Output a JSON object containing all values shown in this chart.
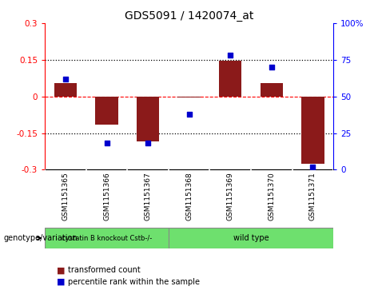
{
  "title": "GDS5091 / 1420074_at",
  "samples": [
    "GSM1151365",
    "GSM1151366",
    "GSM1151367",
    "GSM1151368",
    "GSM1151369",
    "GSM1151370",
    "GSM1151371"
  ],
  "transformed_count": [
    0.055,
    -0.115,
    -0.185,
    -0.005,
    0.145,
    0.055,
    -0.275
  ],
  "percentile_rank": [
    62,
    18,
    18,
    38,
    78,
    70,
    2
  ],
  "ylim_left": [
    -0.3,
    0.3
  ],
  "ylim_right": [
    0,
    100
  ],
  "yticks_left": [
    -0.3,
    -0.15,
    0,
    0.15,
    0.3
  ],
  "yticks_right": [
    0,
    25,
    50,
    75,
    100
  ],
  "ytick_labels_left": [
    "-0.3",
    "-0.15",
    "0",
    "0.15",
    "0.3"
  ],
  "ytick_labels_right": [
    "0",
    "25",
    "50",
    "75",
    "100%"
  ],
  "hlines_dotted": [
    -0.15,
    0.15
  ],
  "hline_dashed": 0,
  "bar_color": "#8B1A1A",
  "dot_color": "#0000CD",
  "group1_label": "cystatin B knockout Cstb-/-",
  "group1_count": 3,
  "group2_label": "wild type",
  "group2_count": 4,
  "group_color": "#6EE06E",
  "legend_item1_label": "transformed count",
  "legend_item1_color": "#8B1A1A",
  "legend_item2_label": "percentile rank within the sample",
  "legend_item2_color": "#0000CD",
  "genotype_label": "genotype/variation",
  "background_color": "#ffffff",
  "plot_bg": "#ffffff",
  "tick_label_area_bg": "#c8c8c8",
  "bar_width": 0.55
}
